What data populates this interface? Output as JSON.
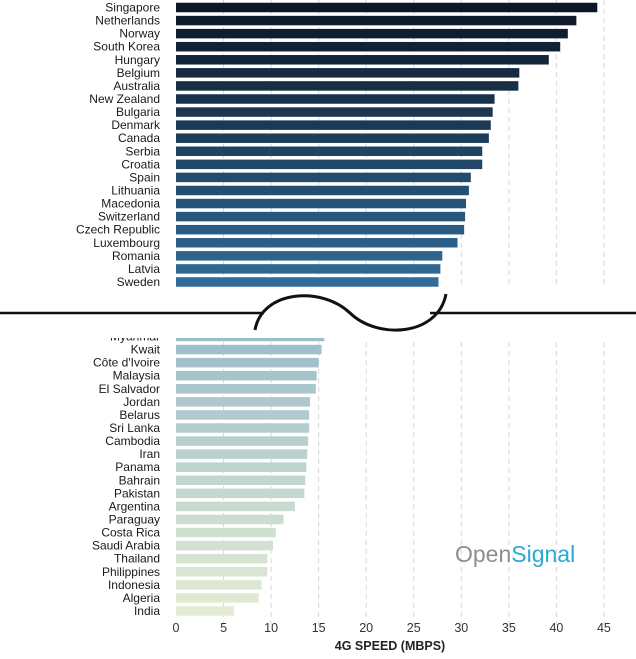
{
  "chart_data": {
    "type": "bar",
    "orientation": "horizontal",
    "xlabel": "4G SPEED (MBPS)",
    "xlim": [
      0,
      45
    ],
    "xticks": [
      0,
      5,
      10,
      15,
      20,
      25,
      30,
      35,
      40,
      45
    ],
    "grid": "vertical dashed",
    "axis_break": "between Sweden and Myanmar",
    "top_group": {
      "categories": [
        "Singapore",
        "Netherlands",
        "Norway",
        "South Korea",
        "Hungary",
        "Belgium",
        "Australia",
        "New Zealand",
        "Bulgaria",
        "Denmark",
        "Canada",
        "Serbia",
        "Croatia",
        "Spain",
        "Lithuania",
        "Macedonia",
        "Switzerland",
        "Czech Republic",
        "Luxembourg",
        "Romania",
        "Latvia",
        "Sweden"
      ],
      "values": [
        44.3,
        42.1,
        41.2,
        40.4,
        39.2,
        36.1,
        36.0,
        33.5,
        33.3,
        33.1,
        32.9,
        32.2,
        32.2,
        31.0,
        30.8,
        30.5,
        30.4,
        30.3,
        29.6,
        28.0,
        27.8,
        27.6
      ]
    },
    "bottom_group": {
      "categories": [
        "Myanmar",
        "Kwait",
        "Côte d'Ivoire",
        "Malaysia",
        "El Salvador",
        "Jordan",
        "Belarus",
        "Sri Lanka",
        "Cambodia",
        "Iran",
        "Panama",
        "Bahrain",
        "Pakistan",
        "Argentina",
        "Paraguay",
        "Costa Rica",
        "Saudi Arabia",
        "Thailand",
        "Philippines",
        "Indonesia",
        "Algeria",
        "India"
      ],
      "values": [
        15.6,
        15.3,
        15.0,
        14.8,
        14.7,
        14.1,
        14.0,
        14.0,
        13.9,
        13.8,
        13.7,
        13.6,
        13.5,
        12.5,
        11.3,
        10.5,
        10.2,
        9.6,
        9.6,
        9.0,
        8.7,
        6.1
      ]
    }
  },
  "branding": {
    "part1": "Open",
    "part2": "Signal",
    "colors": {
      "part1": "#8a8f94",
      "part2": "#29a9d4"
    }
  },
  "colors": {
    "top_start": "#0d1624",
    "top_end": "#316b99",
    "bottom_start": "#9cbdca",
    "bottom_end": "#e3ecd3",
    "grid": "#d7d7d7",
    "break_line": "#111111"
  }
}
